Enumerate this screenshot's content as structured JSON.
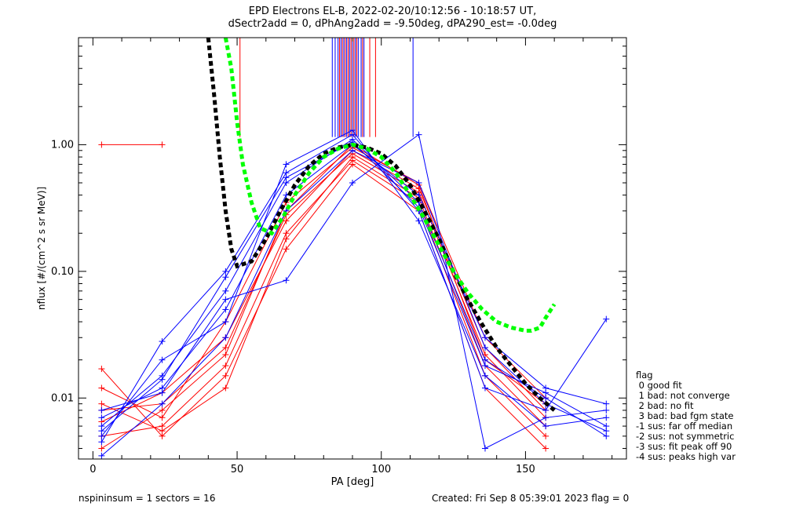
{
  "title_line1": "EPD Electrons EL-B, 2022-02-20/10:12:56 - 10:18:57 UT,",
  "title_line2": "dSectr2add = 0, dPhAng2add = -9.50deg, dPA290_est=  -0.0deg",
  "footer": {
    "left": "nspininsum =  1  sectors = 16",
    "right": "Created: Fri Sep  8 05:39:01 2023   flag = 0"
  },
  "legend": {
    "title": "flag",
    "items": [
      " 0 good fit",
      " 1 bad: not converge",
      " 2 bad: no fit",
      " 3 bad: bad fgm state",
      "-1 sus: far off median",
      "-2 sus: not symmetric",
      "-3 sus: fit peak off 90",
      "-4 sus: peaks high var"
    ]
  },
  "colors": {
    "red": "#ff0000",
    "blue": "#0000ff",
    "black_fit": "#000000",
    "green_fit": "#00ff00"
  },
  "chart_data": {
    "type": "line",
    "xlabel": "PA [deg]",
    "ylabel": "nflux [#/(cm^2 s sr MeV)]",
    "xlim": [
      -5,
      185
    ],
    "ylim": [
      0.0033,
      7.0
    ],
    "yscale": "log",
    "xticks": [
      0,
      50,
      100,
      150
    ],
    "yticks": [
      {
        "value": 1.0,
        "label": "1.00"
      },
      {
        "value": 0.1,
        "label": "0.10"
      },
      {
        "value": 0.01,
        "label": "0.01"
      }
    ],
    "series_red": [
      {
        "x": [
          3,
          24
        ],
        "y": [
          1.0,
          1.0
        ]
      },
      {
        "x": [
          3,
          24,
          46,
          67,
          90,
          113,
          136,
          157
        ],
        "y": [
          0.008,
          0.009,
          0.025,
          0.28,
          0.85,
          0.42,
          0.022,
          0.007
        ]
      },
      {
        "x": [
          3,
          24,
          46,
          67,
          90,
          113,
          136,
          157
        ],
        "y": [
          0.005,
          0.006,
          0.018,
          0.2,
          0.75,
          0.35,
          0.015,
          0.005
        ]
      },
      {
        "x": [
          3,
          24,
          46,
          67,
          90,
          113,
          136,
          157
        ],
        "y": [
          0.012,
          0.007,
          0.04,
          0.35,
          0.95,
          0.5,
          0.03,
          0.01
        ]
      },
      {
        "x": [
          3,
          24,
          46,
          67,
          90,
          113,
          136,
          157
        ],
        "y": [
          0.0065,
          0.011,
          0.03,
          0.25,
          0.9,
          0.45,
          0.025,
          0.008
        ]
      },
      {
        "x": [
          3,
          24,
          46,
          67,
          90,
          113,
          136,
          157
        ],
        "y": [
          0.017,
          0.005,
          0.015,
          0.15,
          0.7,
          0.3,
          0.012,
          0.004
        ]
      },
      {
        "x": [
          3,
          24,
          46,
          67,
          90,
          113,
          136,
          157
        ],
        "y": [
          0.004,
          0.008,
          0.022,
          0.3,
          1.0,
          0.48,
          0.02,
          0.009
        ]
      },
      {
        "x": [
          3,
          24,
          46,
          67,
          90,
          113,
          136,
          157
        ],
        "y": [
          0.009,
          0.0055,
          0.012,
          0.18,
          0.8,
          0.38,
          0.018,
          0.006
        ]
      }
    ],
    "series_blue": [
      {
        "x": [
          3,
          24,
          46,
          67,
          90,
          113,
          136,
          157,
          178
        ],
        "y": [
          0.0045,
          0.028,
          0.1,
          0.6,
          1.2,
          0.3,
          0.012,
          0.008,
          0.042
        ]
      },
      {
        "x": [
          3,
          24,
          46,
          67,
          90,
          113,
          136,
          157,
          178
        ],
        "y": [
          0.006,
          0.015,
          0.07,
          0.5,
          1.1,
          0.35,
          0.02,
          0.01,
          0.005
        ]
      },
      {
        "x": [
          3,
          24,
          46,
          67,
          90,
          113,
          136,
          157,
          178
        ],
        "y": [
          0.007,
          0.012,
          0.05,
          0.4,
          1.0,
          0.4,
          0.03,
          0.012,
          0.009
        ]
      },
      {
        "x": [
          3,
          24,
          46,
          67,
          90,
          113,
          136,
          157,
          178
        ],
        "y": [
          0.005,
          0.02,
          0.04,
          0.7,
          1.3,
          0.25,
          0.015,
          0.006,
          0.007
        ]
      },
      {
        "x": [
          3,
          24,
          46,
          67,
          90,
          113,
          136,
          157,
          178
        ],
        "y": [
          0.0035,
          0.009,
          0.03,
          0.3,
          0.9,
          0.5,
          0.025,
          0.009,
          0.0055
        ]
      },
      {
        "x": [
          3,
          24,
          46,
          67,
          90,
          113,
          136,
          157,
          178
        ],
        "y": [
          0.008,
          0.011,
          0.06,
          0.085,
          0.5,
          1.2,
          0.004,
          0.007,
          0.008
        ]
      },
      {
        "x": [
          3,
          24,
          46,
          67,
          90,
          113,
          136,
          157,
          178
        ],
        "y": [
          0.0055,
          0.014,
          0.09,
          0.55,
          1.05,
          0.32,
          0.018,
          0.011,
          0.006
        ]
      }
    ],
    "fit_black": {
      "x": [
        40,
        42,
        44,
        46,
        48,
        50,
        55,
        60,
        65,
        70,
        75,
        80,
        85,
        90,
        95,
        100,
        105,
        110,
        115,
        120,
        125,
        130,
        135,
        140,
        145,
        150,
        155,
        160
      ],
      "y": [
        7.0,
        2.5,
        0.8,
        0.3,
        0.15,
        0.11,
        0.12,
        0.18,
        0.3,
        0.48,
        0.68,
        0.85,
        0.95,
        1.0,
        0.95,
        0.85,
        0.68,
        0.48,
        0.3,
        0.18,
        0.1,
        0.06,
        0.038,
        0.025,
        0.018,
        0.013,
        0.01,
        0.008
      ]
    },
    "fit_green": {
      "x": [
        46,
        48,
        50,
        52,
        55,
        58,
        62,
        66,
        70,
        75,
        80,
        85,
        90,
        95,
        100,
        105,
        110,
        115,
        120,
        125,
        130,
        135,
        140,
        145,
        150,
        152,
        155,
        157,
        160
      ],
      "y": [
        7.0,
        4.0,
        1.5,
        0.7,
        0.35,
        0.22,
        0.2,
        0.27,
        0.4,
        0.6,
        0.8,
        0.93,
        1.0,
        0.93,
        0.8,
        0.6,
        0.4,
        0.26,
        0.16,
        0.1,
        0.068,
        0.05,
        0.04,
        0.036,
        0.034,
        0.034,
        0.036,
        0.043,
        0.055
      ]
    }
  }
}
